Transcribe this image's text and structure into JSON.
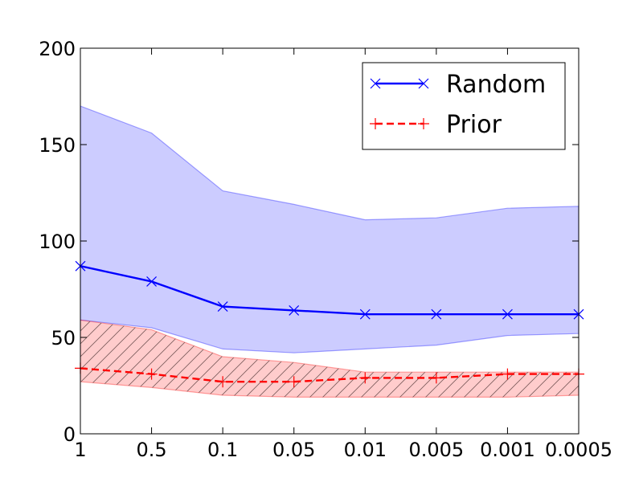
{
  "chart_data": {
    "type": "line",
    "categories": [
      "1",
      "0.5",
      "0.1",
      "0.05",
      "0.01",
      "0.005",
      "0.001",
      "0.0005"
    ],
    "ylim": [
      0,
      200
    ],
    "yticks": [
      0,
      50,
      100,
      150,
      200
    ],
    "grid": false,
    "legend_position": "top-right",
    "series": [
      {
        "name": "Random",
        "color": "#0000ff",
        "line_style": "solid",
        "marker": "x",
        "values": [
          87,
          79,
          66,
          64,
          62,
          62,
          62,
          62
        ],
        "band_upper": [
          170,
          156,
          126,
          119,
          111,
          112,
          117,
          118
        ],
        "band_lower": [
          59,
          55,
          44,
          42,
          44,
          46,
          51,
          52
        ],
        "band_color": "#0000ff",
        "band_hatched": false
      },
      {
        "name": "Prior",
        "color": "#ff0000",
        "line_style": "dashed",
        "marker": "+",
        "values": [
          34,
          31,
          27,
          27,
          29,
          29,
          31,
          31
        ],
        "band_upper": [
          59,
          54,
          40,
          37,
          32,
          32,
          32,
          32
        ],
        "band_lower": [
          27,
          24,
          20,
          19,
          19,
          19,
          19,
          20
        ],
        "band_color": "#ff0000",
        "band_hatched": true
      }
    ]
  }
}
